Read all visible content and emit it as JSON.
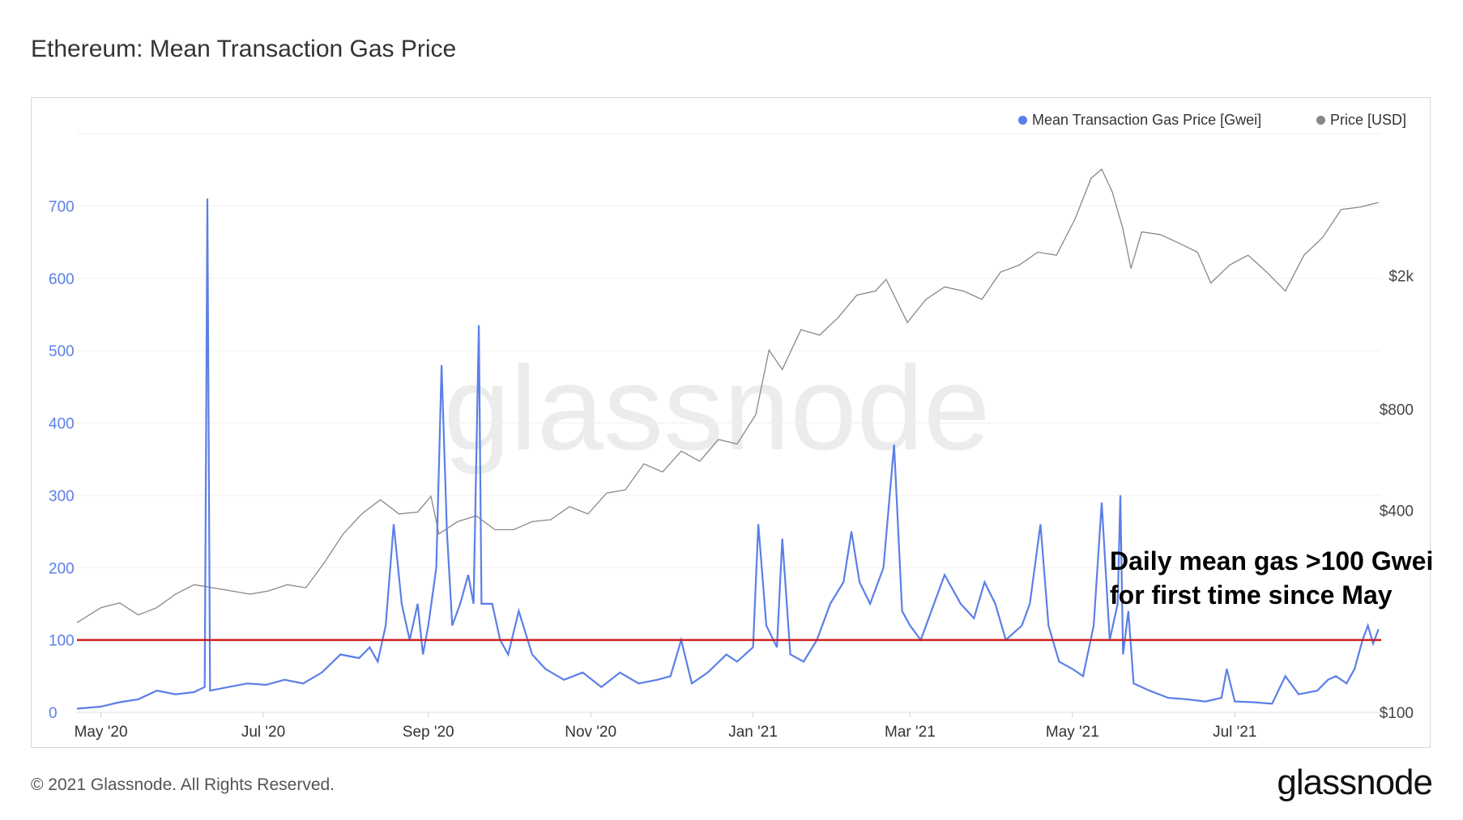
{
  "title": "Ethereum: Mean Transaction Gas Price",
  "footer": "© 2021 Glassnode. All Rights Reserved.",
  "brand": "glassnode",
  "watermark": "glassnode",
  "legend": [
    {
      "label": "Mean Transaction Gas Price [Gwei]",
      "color": "#5b7fe8"
    },
    {
      "label": "Price [USD]",
      "color": "#888888"
    }
  ],
  "annotation": {
    "lines": [
      "Daily mean gas >100 Gwei",
      "for first time since May"
    ],
    "threshold_value": 100,
    "threshold_color": "#cc1f1f"
  },
  "chart_data": {
    "type": "line",
    "x_ticks": [
      "May '20",
      "Jul '20",
      "Sep '20",
      "Nov '20",
      "Jan '21",
      "Mar '21",
      "May '21",
      "Jul '21"
    ],
    "x_tick_dates": [
      "2020-05-01",
      "2020-07-01",
      "2020-09-01",
      "2020-11-01",
      "2021-01-01",
      "2021-03-01",
      "2021-05-01",
      "2021-07-01"
    ],
    "x_range": [
      "2020-04-22",
      "2021-08-25"
    ],
    "y_left": {
      "ticks": [
        "0",
        "100",
        "200",
        "300",
        "400",
        "500",
        "600",
        "700"
      ],
      "range": [
        0,
        800
      ],
      "color": "#5b7fe8"
    },
    "y_right": {
      "ticks": [
        "$100",
        "$400",
        "$800",
        "$2k"
      ],
      "tick_values": [
        100,
        400,
        800,
        2000
      ],
      "scale": "log",
      "range": [
        100,
        5300
      ],
      "color": "#444444"
    },
    "grid": true,
    "legend_position": "top-right",
    "series": [
      {
        "name": "Mean Transaction Gas Price [Gwei]",
        "axis": "left",
        "color": "#5b7fe8",
        "points": [
          [
            "2020-04-22",
            5
          ],
          [
            "2020-05-01",
            8
          ],
          [
            "2020-05-08",
            14
          ],
          [
            "2020-05-15",
            18
          ],
          [
            "2020-05-22",
            30
          ],
          [
            "2020-05-29",
            25
          ],
          [
            "2020-06-05",
            28
          ],
          [
            "2020-06-09",
            35
          ],
          [
            "2020-06-10",
            710
          ],
          [
            "2020-06-11",
            30
          ],
          [
            "2020-06-18",
            35
          ],
          [
            "2020-06-25",
            40
          ],
          [
            "2020-07-02",
            38
          ],
          [
            "2020-07-09",
            45
          ],
          [
            "2020-07-16",
            40
          ],
          [
            "2020-07-23",
            55
          ],
          [
            "2020-07-30",
            80
          ],
          [
            "2020-08-06",
            75
          ],
          [
            "2020-08-10",
            90
          ],
          [
            "2020-08-13",
            70
          ],
          [
            "2020-08-16",
            120
          ],
          [
            "2020-08-19",
            260
          ],
          [
            "2020-08-22",
            150
          ],
          [
            "2020-08-25",
            100
          ],
          [
            "2020-08-28",
            150
          ],
          [
            "2020-08-30",
            80
          ],
          [
            "2020-09-01",
            120
          ],
          [
            "2020-09-04",
            200
          ],
          [
            "2020-09-06",
            480
          ],
          [
            "2020-09-08",
            250
          ],
          [
            "2020-09-10",
            120
          ],
          [
            "2020-09-13",
            150
          ],
          [
            "2020-09-16",
            190
          ],
          [
            "2020-09-18",
            150
          ],
          [
            "2020-09-20",
            535
          ],
          [
            "2020-09-21",
            150
          ],
          [
            "2020-09-25",
            150
          ],
          [
            "2020-09-28",
            100
          ],
          [
            "2020-10-01",
            80
          ],
          [
            "2020-10-05",
            140
          ],
          [
            "2020-10-10",
            80
          ],
          [
            "2020-10-15",
            60
          ],
          [
            "2020-10-22",
            45
          ],
          [
            "2020-10-29",
            55
          ],
          [
            "2020-11-05",
            35
          ],
          [
            "2020-11-12",
            55
          ],
          [
            "2020-11-19",
            40
          ],
          [
            "2020-11-26",
            45
          ],
          [
            "2020-12-01",
            50
          ],
          [
            "2020-12-05",
            100
          ],
          [
            "2020-12-09",
            40
          ],
          [
            "2020-12-15",
            55
          ],
          [
            "2020-12-22",
            80
          ],
          [
            "2020-12-26",
            70
          ],
          [
            "2021-01-01",
            90
          ],
          [
            "2021-01-03",
            260
          ],
          [
            "2021-01-06",
            120
          ],
          [
            "2021-01-10",
            90
          ],
          [
            "2021-01-12",
            240
          ],
          [
            "2021-01-15",
            80
          ],
          [
            "2021-01-20",
            70
          ],
          [
            "2021-01-25",
            100
          ],
          [
            "2021-01-30",
            150
          ],
          [
            "2021-02-04",
            180
          ],
          [
            "2021-02-07",
            250
          ],
          [
            "2021-02-10",
            180
          ],
          [
            "2021-02-14",
            150
          ],
          [
            "2021-02-19",
            200
          ],
          [
            "2021-02-23",
            370
          ],
          [
            "2021-02-26",
            140
          ],
          [
            "2021-03-01",
            120
          ],
          [
            "2021-03-05",
            100
          ],
          [
            "2021-03-10",
            150
          ],
          [
            "2021-03-14",
            190
          ],
          [
            "2021-03-20",
            150
          ],
          [
            "2021-03-25",
            130
          ],
          [
            "2021-03-29",
            180
          ],
          [
            "2021-04-02",
            150
          ],
          [
            "2021-04-06",
            100
          ],
          [
            "2021-04-12",
            120
          ],
          [
            "2021-04-15",
            150
          ],
          [
            "2021-04-19",
            260
          ],
          [
            "2021-04-22",
            120
          ],
          [
            "2021-04-26",
            70
          ],
          [
            "2021-05-01",
            60
          ],
          [
            "2021-05-05",
            50
          ],
          [
            "2021-05-09",
            120
          ],
          [
            "2021-05-12",
            290
          ],
          [
            "2021-05-15",
            100
          ],
          [
            "2021-05-18",
            150
          ],
          [
            "2021-05-19",
            300
          ],
          [
            "2021-05-20",
            80
          ],
          [
            "2021-05-22",
            140
          ],
          [
            "2021-05-24",
            40
          ],
          [
            "2021-05-30",
            30
          ],
          [
            "2021-06-06",
            20
          ],
          [
            "2021-06-13",
            18
          ],
          [
            "2021-06-20",
            15
          ],
          [
            "2021-06-26",
            20
          ],
          [
            "2021-06-28",
            60
          ],
          [
            "2021-07-01",
            15
          ],
          [
            "2021-07-08",
            14
          ],
          [
            "2021-07-15",
            12
          ],
          [
            "2021-07-20",
            50
          ],
          [
            "2021-07-25",
            25
          ],
          [
            "2021-08-01",
            30
          ],
          [
            "2021-08-05",
            45
          ],
          [
            "2021-08-08",
            50
          ],
          [
            "2021-08-12",
            40
          ],
          [
            "2021-08-15",
            60
          ],
          [
            "2021-08-18",
            100
          ],
          [
            "2021-08-20",
            120
          ],
          [
            "2021-08-22",
            95
          ],
          [
            "2021-08-24",
            115
          ]
        ]
      },
      {
        "name": "Price [USD]",
        "axis": "right",
        "color": "#888888",
        "points": [
          [
            "2020-04-22",
            185
          ],
          [
            "2020-05-01",
            205
          ],
          [
            "2020-05-08",
            212
          ],
          [
            "2020-05-15",
            195
          ],
          [
            "2020-05-22",
            205
          ],
          [
            "2020-05-29",
            225
          ],
          [
            "2020-06-05",
            240
          ],
          [
            "2020-06-12",
            235
          ],
          [
            "2020-06-19",
            230
          ],
          [
            "2020-06-26",
            225
          ],
          [
            "2020-07-03",
            230
          ],
          [
            "2020-07-10",
            240
          ],
          [
            "2020-07-17",
            235
          ],
          [
            "2020-07-24",
            280
          ],
          [
            "2020-07-31",
            340
          ],
          [
            "2020-08-07",
            390
          ],
          [
            "2020-08-14",
            430
          ],
          [
            "2020-08-21",
            390
          ],
          [
            "2020-08-28",
            395
          ],
          [
            "2020-09-02",
            440
          ],
          [
            "2020-09-05",
            340
          ],
          [
            "2020-09-12",
            370
          ],
          [
            "2020-09-19",
            385
          ],
          [
            "2020-09-26",
            350
          ],
          [
            "2020-10-03",
            350
          ],
          [
            "2020-10-10",
            370
          ],
          [
            "2020-10-17",
            375
          ],
          [
            "2020-10-24",
            410
          ],
          [
            "2020-10-31",
            390
          ],
          [
            "2020-11-07",
            450
          ],
          [
            "2020-11-14",
            460
          ],
          [
            "2020-11-21",
            550
          ],
          [
            "2020-11-28",
            520
          ],
          [
            "2020-12-05",
            600
          ],
          [
            "2020-12-12",
            560
          ],
          [
            "2020-12-19",
            650
          ],
          [
            "2020-12-26",
            630
          ],
          [
            "2021-01-02",
            770
          ],
          [
            "2021-01-07",
            1200
          ],
          [
            "2021-01-12",
            1050
          ],
          [
            "2021-01-19",
            1380
          ],
          [
            "2021-01-26",
            1330
          ],
          [
            "2021-02-02",
            1500
          ],
          [
            "2021-02-09",
            1750
          ],
          [
            "2021-02-16",
            1800
          ],
          [
            "2021-02-20",
            1950
          ],
          [
            "2021-02-28",
            1450
          ],
          [
            "2021-03-07",
            1700
          ],
          [
            "2021-03-14",
            1850
          ],
          [
            "2021-03-21",
            1800
          ],
          [
            "2021-03-28",
            1700
          ],
          [
            "2021-04-04",
            2050
          ],
          [
            "2021-04-11",
            2150
          ],
          [
            "2021-04-18",
            2350
          ],
          [
            "2021-04-25",
            2300
          ],
          [
            "2021-05-02",
            2950
          ],
          [
            "2021-05-08",
            3900
          ],
          [
            "2021-05-12",
            4150
          ],
          [
            "2021-05-16",
            3550
          ],
          [
            "2021-05-20",
            2750
          ],
          [
            "2021-05-23",
            2100
          ],
          [
            "2021-05-27",
            2700
          ],
          [
            "2021-06-03",
            2650
          ],
          [
            "2021-06-10",
            2500
          ],
          [
            "2021-06-17",
            2350
          ],
          [
            "2021-06-22",
            1900
          ],
          [
            "2021-06-29",
            2150
          ],
          [
            "2021-07-06",
            2300
          ],
          [
            "2021-07-13",
            2050
          ],
          [
            "2021-07-20",
            1800
          ],
          [
            "2021-07-27",
            2300
          ],
          [
            "2021-08-03",
            2600
          ],
          [
            "2021-08-10",
            3150
          ],
          [
            "2021-08-17",
            3200
          ],
          [
            "2021-08-24",
            3300
          ]
        ]
      }
    ]
  }
}
